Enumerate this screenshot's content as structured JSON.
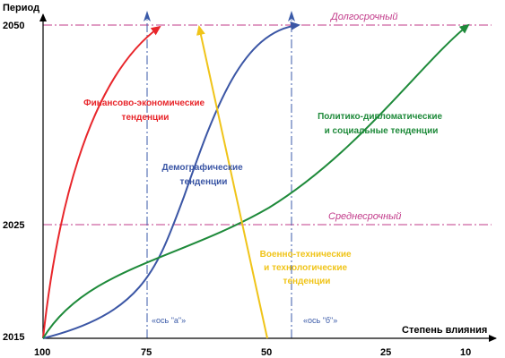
{
  "diagram": {
    "y_axis_title": "Период",
    "x_axis_title": "Степень влияния",
    "y_ticks": [
      "2015",
      "2025",
      "2050"
    ],
    "x_ticks": [
      "100",
      "75",
      "50",
      "25",
      "10"
    ],
    "horizons": {
      "long": "Долгосрочный",
      "mid": "Среднесрочный"
    },
    "axes_labels": {
      "a": "«ось \"а\"»",
      "b": "«ось \"б\"»"
    },
    "trends": {
      "financial": {
        "line1": "Финансово-экономические",
        "line2": "тенденции"
      },
      "demographic": {
        "line1": "Демографические",
        "line2": "тенденции"
      },
      "political": {
        "line1": "Политико-дипломатические",
        "line2": "и социальные тенденции"
      },
      "military": {
        "line1": "Военно-технические",
        "line2": "и технологические",
        "line3": "тенденции"
      }
    }
  },
  "colors": {
    "axis": "#000000",
    "horizon": "#c23b8a",
    "axis_ab": "#3a5aa8",
    "financial": "#e8262b",
    "demographic": "#3b56a5",
    "political": "#1e8a3a",
    "military": "#f0c419"
  }
}
